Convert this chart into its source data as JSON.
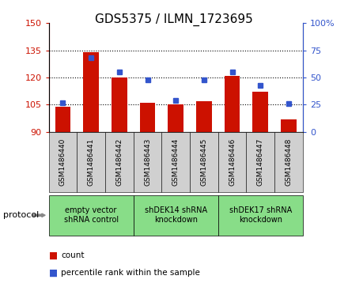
{
  "title": "GDS5375 / ILMN_1723695",
  "samples": [
    "GSM1486440",
    "GSM1486441",
    "GSM1486442",
    "GSM1486443",
    "GSM1486444",
    "GSM1486445",
    "GSM1486446",
    "GSM1486447",
    "GSM1486448"
  ],
  "counts": [
    104,
    134,
    120,
    106,
    105,
    107,
    121,
    112,
    97
  ],
  "percentiles": [
    27,
    68,
    55,
    48,
    29,
    48,
    55,
    43,
    26
  ],
  "ylim_left": [
    90,
    150
  ],
  "ylim_right": [
    0,
    100
  ],
  "yticks_left": [
    90,
    105,
    120,
    135,
    150
  ],
  "yticks_right": [
    0,
    25,
    50,
    75,
    100
  ],
  "grid_yticks": [
    105,
    120,
    135
  ],
  "bar_color": "#cc1100",
  "dot_color": "#3355cc",
  "bar_bottom": 90,
  "groups": [
    {
      "label": "empty vector\nshRNA control",
      "start": 0,
      "end": 3
    },
    {
      "label": "shDEK14 shRNA\nknockdown",
      "start": 3,
      "end": 6
    },
    {
      "label": "shDEK17 shRNA\nknockdown",
      "start": 6,
      "end": 9
    }
  ],
  "legend_count_label": "count",
  "legend_pct_label": "percentile rank within the sample",
  "protocol_label": "protocol",
  "sample_box_color": "#d0d0d0",
  "group_box_color": "#88dd88",
  "title_fontsize": 11,
  "tick_fontsize": 8,
  "sample_label_fontsize": 6.5,
  "group_label_fontsize": 7,
  "legend_fontsize": 7.5
}
